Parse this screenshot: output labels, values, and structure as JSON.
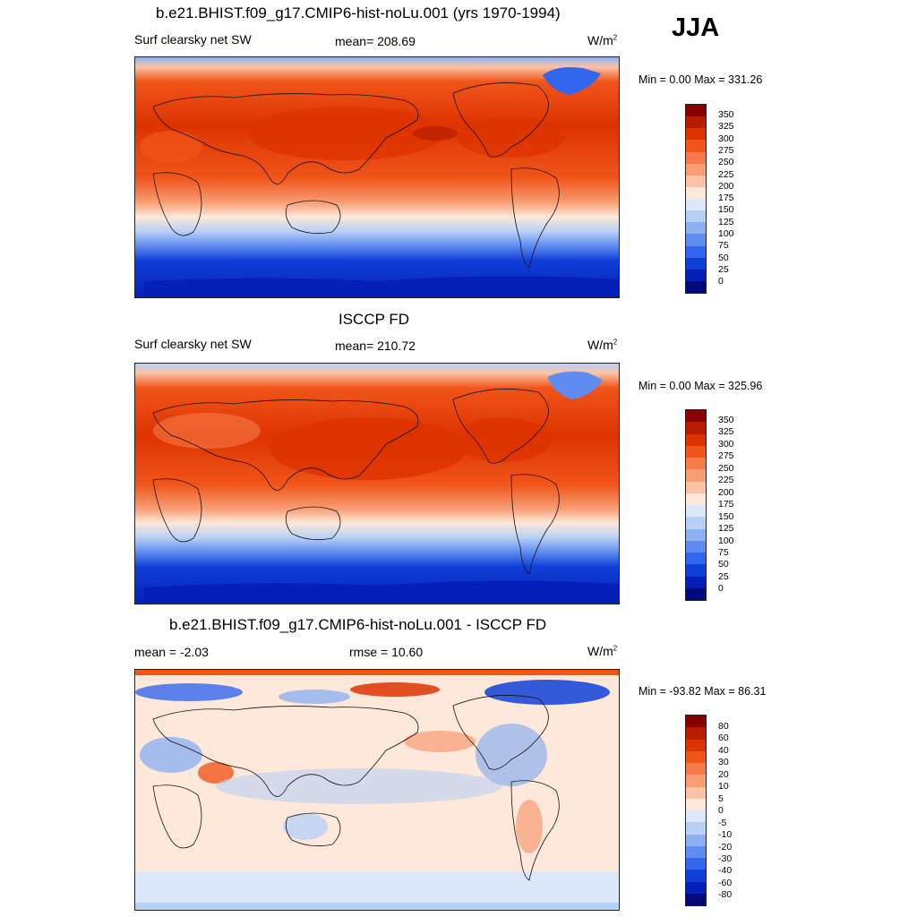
{
  "season": "JJA",
  "panels": [
    {
      "title": "b.e21.BHIST.f09_g17.CMIP6-hist-noLu.001 (yrs 1970-1994)",
      "left_label": "Surf clearsky net SW",
      "center_label": "mean= 208.69",
      "units": "W/m",
      "units_sup": "2",
      "minmax": "Min =   0.00 Max = 331.26",
      "colorbar": {
        "labels": [
          "350",
          "325",
          "300",
          "275",
          "250",
          "225",
          "200",
          "175",
          "150",
          "125",
          "100",
          "75",
          "50",
          "25",
          "0"
        ],
        "colors": [
          "#8a0000",
          "#b71c00",
          "#dd3300",
          "#f0551a",
          "#f67a4a",
          "#f89d74",
          "#fbc3a6",
          "#fde8da",
          "#dde9fa",
          "#b9d0f5",
          "#8eb0f0",
          "#5f8cf0",
          "#3366ee",
          "#1040d8",
          "#0420b8",
          "#020a7a"
        ]
      }
    },
    {
      "title": "ISCCP FD",
      "left_label": "Surf clearsky net SW",
      "center_label": "mean= 210.72",
      "units": "W/m",
      "units_sup": "2",
      "minmax": "Min =   0.00 Max = 325.96",
      "colorbar": {
        "labels": [
          "350",
          "325",
          "300",
          "275",
          "250",
          "225",
          "200",
          "175",
          "150",
          "125",
          "100",
          "75",
          "50",
          "25",
          "0"
        ],
        "colors": [
          "#8a0000",
          "#b71c00",
          "#dd3300",
          "#f0551a",
          "#f67a4a",
          "#f89d74",
          "#fbc3a6",
          "#fde8da",
          "#dde9fa",
          "#b9d0f5",
          "#8eb0f0",
          "#5f8cf0",
          "#3366ee",
          "#1040d8",
          "#0420b8",
          "#020a7a"
        ]
      }
    },
    {
      "title": "b.e21.BHIST.f09_g17.CMIP6-hist-noLu.001 - ISCCP FD",
      "left_label": "mean =  -2.03",
      "center_label": "rmse =  10.60",
      "units": "W/m",
      "units_sup": "2",
      "minmax": "Min = -93.82 Max =  86.31",
      "colorbar": {
        "labels": [
          "80",
          "60",
          "40",
          "30",
          "20",
          "10",
          "5",
          "0",
          "-5",
          "-10",
          "-20",
          "-30",
          "-40",
          "-60",
          "-80"
        ],
        "colors": [
          "#8a0000",
          "#b71c00",
          "#dd3300",
          "#f0551a",
          "#f67a4a",
          "#f89d74",
          "#fbc3a6",
          "#fde8da",
          "#dde9fa",
          "#b9d0f5",
          "#8eb0f0",
          "#5f8cf0",
          "#3366ee",
          "#1040d8",
          "#0420b8",
          "#020a7a"
        ]
      }
    }
  ]
}
